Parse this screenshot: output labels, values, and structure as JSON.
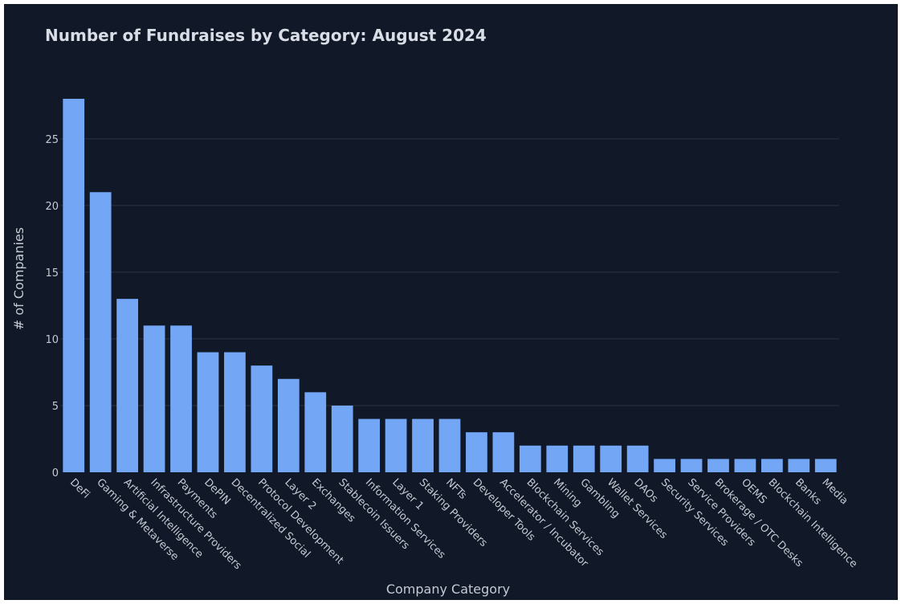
{
  "chart_data": {
    "type": "bar",
    "title": "Number of Fundraises by Category: August 2024",
    "xlabel": "Company Category",
    "ylabel": "# of Companies",
    "ylim": [
      0,
      28
    ],
    "yticks": [
      0,
      5,
      10,
      15,
      20,
      25
    ],
    "grid": true,
    "bar_color": "#74a6f6",
    "background": "#111827",
    "categories": [
      "DeFi",
      "Gaming & Metaverse",
      "Artificial Intelligence",
      "Infrastructure Providers",
      "Payments",
      "DePIN",
      "Decentralized Social",
      "Protocol Development",
      "Layer 2",
      "Exchanges",
      "Stablecoin Issuers",
      "Information Services",
      "Layer 1",
      "Staking Providers",
      "NFTs",
      "Developer Tools",
      "Accelerator / Incubator",
      "Blockchain Services",
      "Mining",
      "Gambling",
      "Wallet Services",
      "DAOs",
      "Security Services",
      "Service Providers",
      "Brokerage / OTC Desks",
      "OEMS",
      "Blockchain Intelligence",
      "Banks",
      "Media"
    ],
    "values": [
      28,
      21,
      13,
      11,
      11,
      9,
      9,
      8,
      7,
      6,
      5,
      4,
      4,
      4,
      4,
      3,
      3,
      2,
      2,
      2,
      2,
      2,
      1,
      1,
      1,
      1,
      1,
      1,
      1
    ]
  }
}
